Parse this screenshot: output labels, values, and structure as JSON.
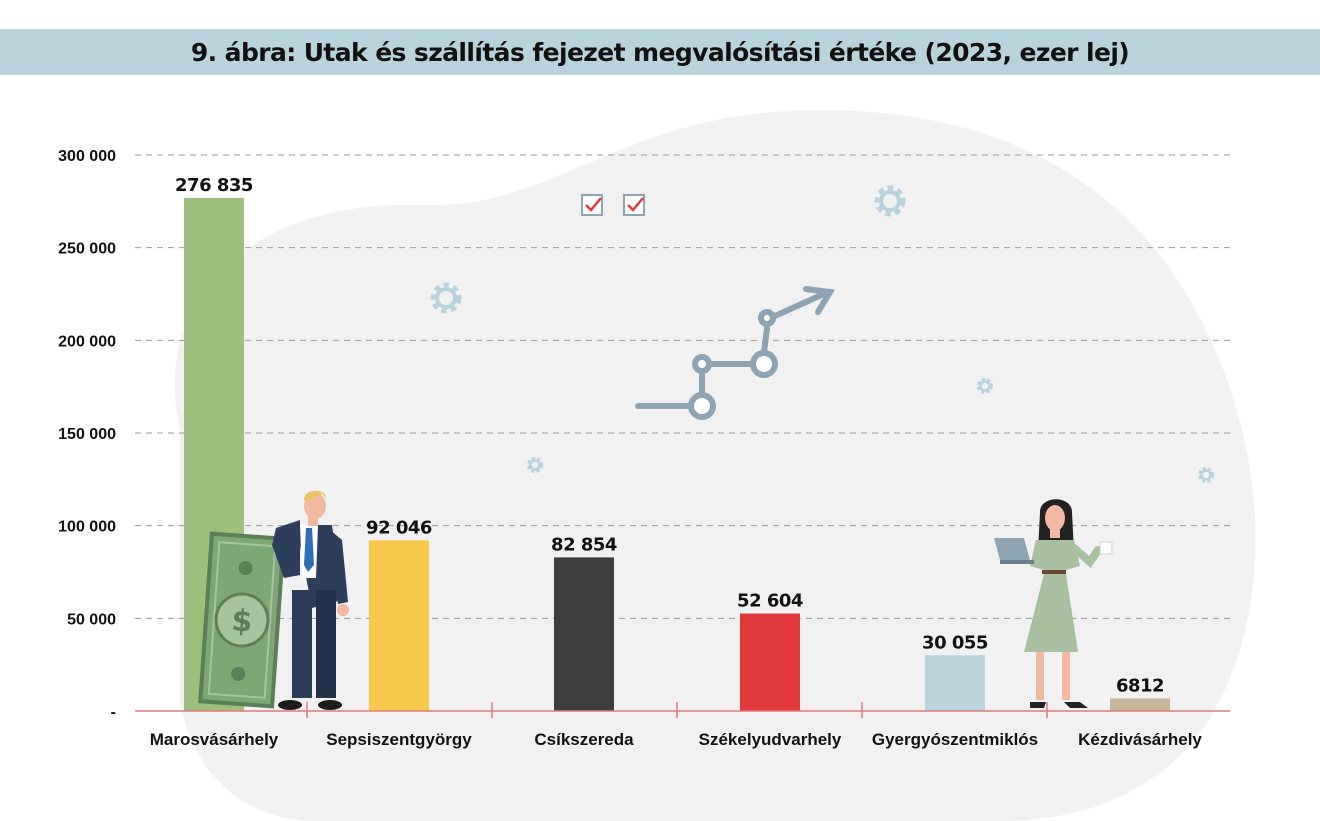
{
  "title": "9. ábra: Utak és szállítás fejezet megvalósítási értéke (2023, ezer lej)",
  "chart_data": {
    "type": "bar",
    "title": "9. ábra: Utak és szállítás fejezet megvalósítási értéke (2023, ezer lej)",
    "categories": [
      "Marosvásárhely",
      "Sepsiszentgyörgy",
      "Csíkszereda",
      "Székelyudvarhely",
      "Gyergyószentmiklós",
      "Kézdivásárhely"
    ],
    "values": [
      276835,
      92046,
      82854,
      52604,
      30055,
      6812
    ],
    "value_labels": [
      "276 835",
      "92 046",
      "82 854",
      "52 604",
      "30 055",
      "6812"
    ],
    "colors": [
      "#9dbf7c",
      "#f8c84a",
      "#3d3d3d",
      "#e3383b",
      "#b9d3dd",
      "#c5b79b"
    ],
    "ylim": [
      0,
      300000
    ],
    "yticks": [
      0,
      50000,
      100000,
      150000,
      200000,
      250000,
      300000
    ],
    "ytick_labels": [
      "-",
      "50 000",
      "100 000",
      "150 000",
      "200 000",
      "250 000",
      "300 000"
    ],
    "grid": true,
    "xlabel": "",
    "ylabel": ""
  },
  "decorations": {
    "left_figure": "businessman-with-banknote-icon",
    "right_figure": "businesswoman-with-laptop-icon",
    "center_graphic": "growth-arrow-icon",
    "checkbox_icon": "checkbox-icon",
    "gear_icon": "gear-icon"
  }
}
